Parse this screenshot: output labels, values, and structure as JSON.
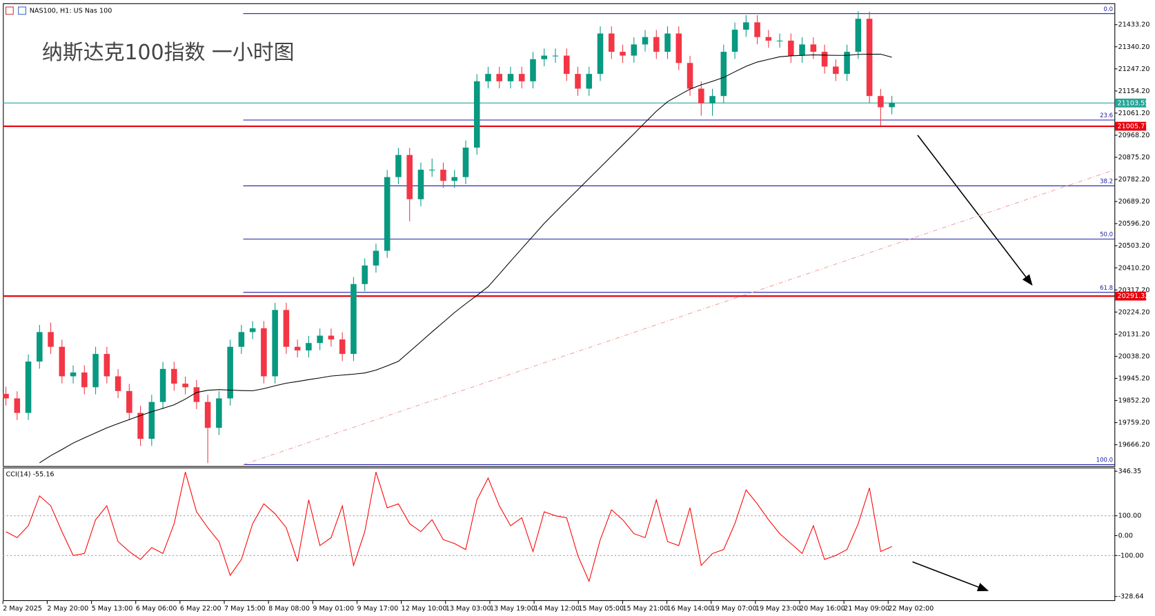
{
  "header": "NAS100, H1:  US Nas 100",
  "chart_data": {
    "type": "candlestick",
    "title": "纳斯达克100指数 一小时图",
    "x_labels": [
      "2 May 2025",
      "2 May 20:00",
      "5 May 13:00",
      "6 May 06:00",
      "6 May 22:00",
      "7 May 15:00",
      "8 May 08:00",
      "9 May 01:00",
      "9 May 17:00",
      "12 May 10:00",
      "13 May 03:00",
      "13 May 19:00",
      "14 May 12:00",
      "15 May 05:00",
      "15 May 21:00",
      "16 May 14:00",
      "19 May 07:00",
      "19 May 23:00",
      "20 May 16:00",
      "21 May 09:00",
      "22 May 02:00"
    ],
    "open": [
      19880,
      19861,
      19800,
      20016,
      20140,
      20078,
      19954,
      19970,
      19908,
      20048,
      19954,
      19892,
      19800,
      19691,
      19846,
      19985,
      19923,
      19908,
      19846,
      19737,
      19861,
      20078,
      20140,
      20156,
      19954,
      20233,
      20078,
      20063,
      20094,
      20125,
      20109,
      20048,
      20342,
      20420,
      20482,
      20792,
      20885,
      20699,
      20823,
      20823,
      20776,
      20792,
      20916,
      21195,
      21226,
      21195,
      21226,
      21195,
      21288,
      21303,
      21303,
      21226,
      21164,
      21226,
      21396,
      21319,
      21303,
      21350,
      21381,
      21319,
      21396,
      21272,
      21164,
      21102,
      21133,
      21319,
      21412,
      21443,
      21381,
      21366,
      21366,
      21303,
      21350,
      21319,
      21257,
      21226,
      21319,
      21458,
      21133,
      21086
    ],
    "high": [
      19910,
      19891,
      20046,
      20170,
      20180,
      20108,
      20000,
      20000,
      20078,
      20078,
      19984,
      19922,
      19830,
      19876,
      20015,
      20015,
      19953,
      19938,
      19876,
      19891,
      20108,
      20170,
      20186,
      20186,
      20263,
      20263,
      20108,
      20124,
      20155,
      20155,
      20139,
      20372,
      20450,
      20512,
      20822,
      20915,
      20915,
      20853,
      20870,
      20853,
      20822,
      20946,
      21225,
      21256,
      21256,
      21256,
      21256,
      21318,
      21333,
      21333,
      21333,
      21256,
      21256,
      21426,
      21426,
      21349,
      21380,
      21411,
      21411,
      21426,
      21426,
      21302,
      21194,
      21163,
      21349,
      21442,
      21473,
      21473,
      21411,
      21396,
      21396,
      21380,
      21380,
      21349,
      21287,
      21349,
      21489,
      21488,
      21163,
      21134
    ],
    "low": [
      19831,
      19770,
      19770,
      19986,
      20048,
      19924,
      19924,
      19878,
      19878,
      19924,
      19862,
      19770,
      19661,
      19661,
      19816,
      19893,
      19878,
      19816,
      19589,
      19707,
      19831,
      20048,
      20110,
      19924,
      19924,
      20048,
      20033,
      20033,
      20064,
      20079,
      20018,
      20018,
      20312,
      20390,
      20452,
      20762,
      20606,
      20669,
      20793,
      20746,
      20746,
      20762,
      20886,
      21165,
      21165,
      21165,
      21165,
      21165,
      21258,
      21273,
      21196,
      21134,
      21134,
      21196,
      21289,
      21273,
      21273,
      21320,
      21289,
      21289,
      21242,
      21134,
      21050,
      21050,
      21103,
      21289,
      21382,
      21351,
      21336,
      21336,
      21273,
      21273,
      21289,
      21227,
      21196,
      21196,
      21289,
      21103,
      21008,
      21056
    ],
    "close": [
      19861,
      19800,
      20016,
      20140,
      20078,
      19954,
      19970,
      19908,
      20048,
      19954,
      19892,
      19800,
      19691,
      19846,
      19985,
      19923,
      19908,
      19846,
      19737,
      19861,
      20078,
      20140,
      20156,
      19954,
      20233,
      20078,
      20063,
      20094,
      20125,
      20109,
      20048,
      20342,
      20420,
      20482,
      20792,
      20885,
      20699,
      20823,
      20823,
      20776,
      20792,
      20916,
      21195,
      21226,
      21195,
      21226,
      21195,
      21288,
      21303,
      21303,
      21226,
      21164,
      21226,
      21396,
      21319,
      21303,
      21350,
      21381,
      21319,
      21396,
      21272,
      21164,
      21102,
      21133,
      21319,
      21412,
      21443,
      21381,
      21366,
      21366,
      21303,
      21350,
      21319,
      21257,
      21226,
      21319,
      21458,
      21133,
      21086,
      21104
    ],
    "up_color": "#089981",
    "down_color": "#f23645",
    "ylim": [
      19576.3,
      21523.1
    ],
    "yticks": [
      {
        "value": 21433.2,
        "label": "21433.20"
      },
      {
        "value": 21340.2,
        "label": "21340.20"
      },
      {
        "value": 21247.2,
        "label": "21247.20"
      },
      {
        "value": 21154.2,
        "label": "21154.20"
      },
      {
        "value": 21061.2,
        "label": "21061.20"
      },
      {
        "value": 20968.2,
        "label": "20968.20"
      },
      {
        "value": 20875.2,
        "label": "20875.20"
      },
      {
        "value": 20782.2,
        "label": "20782.20"
      },
      {
        "value": 20689.2,
        "label": "20689.20"
      },
      {
        "value": 20596.2,
        "label": "20596.20"
      },
      {
        "value": 20503.2,
        "label": "20503.20"
      },
      {
        "value": 20410.2,
        "label": "20410.20"
      },
      {
        "value": 20317.2,
        "label": "20317.20"
      },
      {
        "value": 20224.2,
        "label": "20224.20"
      },
      {
        "value": 20131.2,
        "label": "20131.20"
      },
      {
        "value": 20038.2,
        "label": "20038.20"
      },
      {
        "value": 19945.2,
        "label": "19945.20"
      },
      {
        "value": 19852.2,
        "label": "19852.20"
      },
      {
        "value": 19759.2,
        "label": "19759.20"
      },
      {
        "value": 19666.2,
        "label": "19666.20"
      }
    ],
    "moving_average": {
      "color": "#000000",
      "values": [
        null,
        null,
        null,
        19590,
        19620,
        19646,
        19673,
        19695,
        19716,
        19737,
        19755,
        19772,
        19789,
        19805,
        19819,
        19834,
        19858,
        19886,
        19895,
        19898,
        19896,
        19894,
        19893,
        19902,
        19914,
        19925,
        19932,
        19940,
        19947,
        19955,
        19959,
        19963,
        19968,
        19980,
        19998,
        20017,
        20058,
        20099,
        20141,
        20181,
        20222,
        20259,
        20294,
        20331,
        20384,
        20438,
        20491,
        20544,
        20597,
        20645,
        20692,
        20739,
        20786,
        20833,
        20880,
        20927,
        20974,
        21022,
        21069,
        21109,
        21136,
        21162,
        21180,
        21195,
        21211,
        21235,
        21258,
        21276,
        21287,
        21298,
        21302,
        21304,
        21306,
        21305,
        21304,
        21304,
        21308,
        21309,
        21309,
        21296
      ]
    },
    "price_lines": [
      {
        "value": 21103.55,
        "color": "#26a69a"
      },
      {
        "value": 21005.77,
        "color": "#e8000b"
      },
      {
        "value": 20291.32,
        "color": "#e8000b"
      }
    ],
    "fibonacci": {
      "color": "#1a1aa6",
      "levels": [
        {
          "label": "0.0",
          "value": 21479.7
        },
        {
          "label": "23.6",
          "value": 21032
        },
        {
          "label": "38.2",
          "value": 20755
        },
        {
          "label": "50.0",
          "value": 20531
        },
        {
          "label": "61.8",
          "value": 20307
        },
        {
          "label": "100.0",
          "value": 19582.5
        }
      ]
    },
    "trendline": {
      "color": "#f4a0a0",
      "values": [
        19582.5,
        20822.5
      ]
    },
    "indicator": {
      "type": "line",
      "title": "CCI(14) -55.16",
      "color": "#ff0000",
      "values": [
        20,
        -10,
        50,
        200,
        150,
        20,
        -100,
        -90,
        80,
        150,
        -30,
        -80,
        -120,
        -60,
        -90,
        60,
        320,
        120,
        40,
        -30,
        -200,
        -120,
        60,
        160,
        110,
        40,
        -130,
        180,
        -50,
        -10,
        150,
        -150,
        20,
        320,
        140,
        160,
        60,
        20,
        80,
        -20,
        -40,
        -70,
        180,
        290,
        150,
        50,
        90,
        -80,
        120,
        100,
        90,
        -100,
        -230,
        -20,
        130,
        80,
        10,
        -10,
        180,
        -30,
        -50,
        140,
        -150,
        -90,
        -70,
        60,
        230,
        160,
        80,
        10,
        -40,
        -90,
        50,
        -120,
        -100,
        -70,
        60,
        240,
        -80,
        -55.16
      ],
      "ylim": [
        -328.64,
        346.35
      ],
      "yticks": [
        346.35,
        {
          "value": 100,
          "label": "100.00"
        },
        {
          "value": 0,
          "label": "0.00"
        },
        {
          "value": -100,
          "label": "-100.00"
        },
        -328.64
      ],
      "levels": [
        100,
        -100
      ]
    }
  }
}
